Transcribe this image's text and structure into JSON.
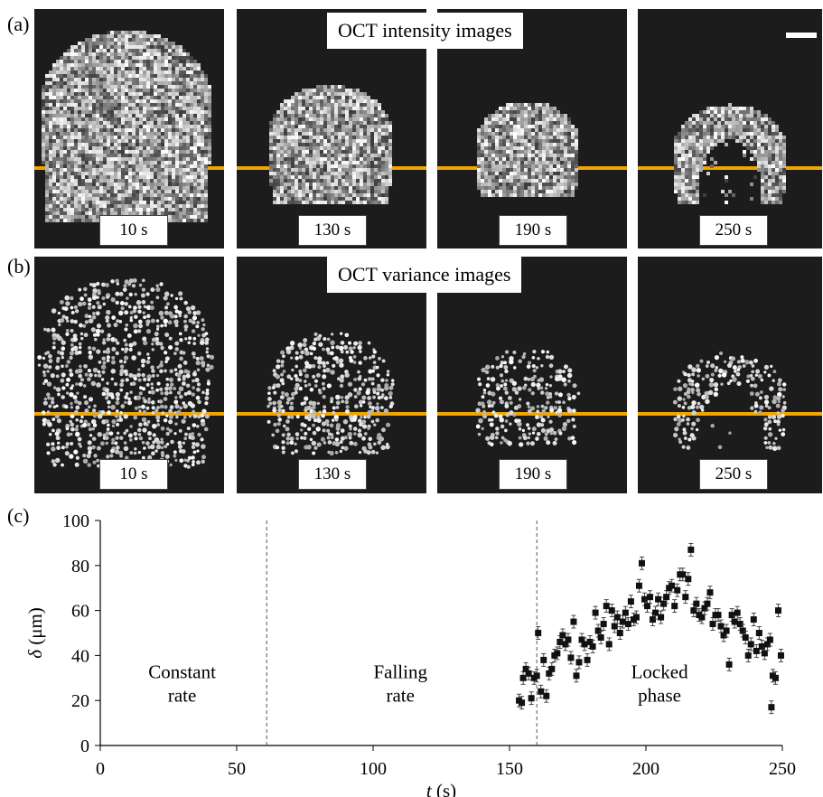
{
  "panels": {
    "a": "(a)",
    "b": "(b)",
    "c": "(c)"
  },
  "row_titles": {
    "intensity": "OCT intensity images",
    "variance": "OCT variance images"
  },
  "time_labels": [
    "10 s",
    "130 s",
    "190 s",
    "250 s"
  ],
  "colors": {
    "tile_bg": "#1c1c1c",
    "interface_line": "#f0a500",
    "marker": "#111111"
  },
  "chart_data": {
    "type": "scatter",
    "xlabel_symbol": "t",
    "xlabel_unit": "(s)",
    "ylabel_symbol": "δ",
    "ylabel_unit": "(μm)",
    "xlim": [
      0,
      250
    ],
    "ylim": [
      0,
      100
    ],
    "xticks": [
      "0",
      "50",
      "100",
      "150",
      "200",
      "250"
    ],
    "yticks": [
      "0",
      "20",
      "40",
      "60",
      "80",
      "100"
    ],
    "grid": false,
    "dividers_x": [
      61,
      160
    ],
    "region_labels": [
      {
        "line1": "Constant",
        "line2": "rate",
        "x_center": 30
      },
      {
        "line1": "Falling",
        "line2": "rate",
        "x_center": 110
      },
      {
        "line1": "Locked",
        "line2": "phase",
        "x_center": 205
      }
    ],
    "error": 2.8,
    "points": [
      [
        153.5,
        20
      ],
      [
        154.5,
        19
      ],
      [
        155,
        30
      ],
      [
        156,
        34
      ],
      [
        157,
        32
      ],
      [
        158,
        21
      ],
      [
        159,
        30
      ],
      [
        160,
        31
      ],
      [
        160.5,
        50
      ],
      [
        161.5,
        24
      ],
      [
        162.5,
        38
      ],
      [
        163.5,
        22
      ],
      [
        164.5,
        32
      ],
      [
        165.5,
        34
      ],
      [
        166.5,
        40
      ],
      [
        167.5,
        41
      ],
      [
        168.5,
        46
      ],
      [
        169.5,
        49
      ],
      [
        170.5,
        45
      ],
      [
        171.5,
        47
      ],
      [
        172.5,
        39
      ],
      [
        173.5,
        55
      ],
      [
        174.5,
        31
      ],
      [
        175.5,
        37
      ],
      [
        176.5,
        47
      ],
      [
        177.5,
        45
      ],
      [
        178.5,
        38
      ],
      [
        179.5,
        46
      ],
      [
        180.5,
        44
      ],
      [
        181.5,
        59
      ],
      [
        182.5,
        51
      ],
      [
        183.5,
        48
      ],
      [
        184.5,
        54
      ],
      [
        185.5,
        62
      ],
      [
        186.5,
        45
      ],
      [
        187.5,
        60
      ],
      [
        188.5,
        53
      ],
      [
        189.5,
        57
      ],
      [
        190.5,
        50
      ],
      [
        191.5,
        55
      ],
      [
        192.5,
        59
      ],
      [
        193.5,
        54
      ],
      [
        194.5,
        64
      ],
      [
        195.5,
        56
      ],
      [
        196.5,
        57
      ],
      [
        197.5,
        71
      ],
      [
        198.5,
        81
      ],
      [
        199.5,
        65
      ],
      [
        200.5,
        62
      ],
      [
        201.5,
        66
      ],
      [
        202.5,
        56
      ],
      [
        203.5,
        59
      ],
      [
        204.5,
        65
      ],
      [
        205.5,
        57
      ],
      [
        206.5,
        63
      ],
      [
        207.5,
        66
      ],
      [
        208.5,
        70
      ],
      [
        209.5,
        71
      ],
      [
        210.5,
        62
      ],
      [
        211.5,
        69
      ],
      [
        212.5,
        76
      ],
      [
        213.5,
        76
      ],
      [
        214.5,
        66
      ],
      [
        215.5,
        74
      ],
      [
        216.5,
        87
      ],
      [
        217.5,
        60
      ],
      [
        218.5,
        63
      ],
      [
        219.5,
        58
      ],
      [
        220.5,
        57
      ],
      [
        221.5,
        61
      ],
      [
        222.5,
        63
      ],
      [
        223.5,
        68
      ],
      [
        224.5,
        54
      ],
      [
        225.5,
        58
      ],
      [
        226.5,
        58
      ],
      [
        227.5,
        53
      ],
      [
        228.5,
        49
      ],
      [
        229.5,
        51
      ],
      [
        230.5,
        36
      ],
      [
        231.5,
        58
      ],
      [
        232.5,
        55
      ],
      [
        233.5,
        59
      ],
      [
        234.5,
        54
      ],
      [
        235.5,
        51
      ],
      [
        236.5,
        48
      ],
      [
        237.5,
        40
      ],
      [
        238.5,
        45
      ],
      [
        239.5,
        56
      ],
      [
        240.5,
        42
      ],
      [
        241.5,
        50
      ],
      [
        242.5,
        44
      ],
      [
        243.5,
        41
      ],
      [
        244.5,
        45
      ],
      [
        245.5,
        47
      ],
      [
        246,
        17
      ],
      [
        246.5,
        31
      ],
      [
        247.5,
        30
      ],
      [
        248.5,
        60
      ],
      [
        249.5,
        40
      ]
    ]
  }
}
